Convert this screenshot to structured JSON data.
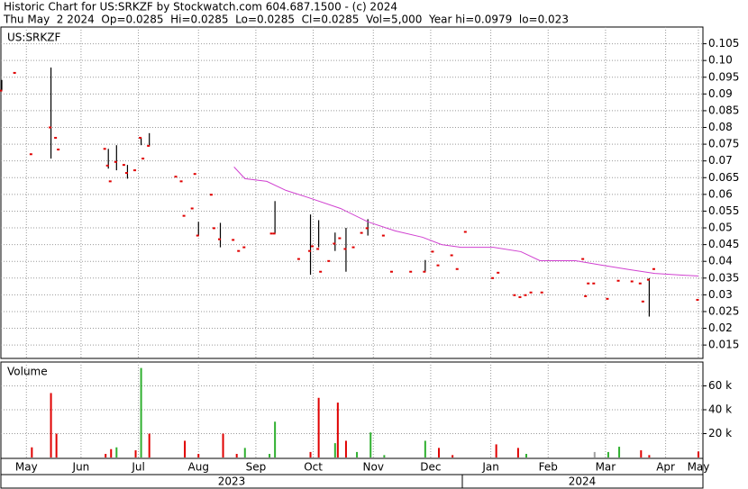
{
  "header": {
    "line1": "Historic Chart for US:SRKZF by Stockwatch.com 604.687.1500 - (c) 2024",
    "line2": "Thu May  2 2024  Op=0.0285  Hi=0.0285  Lo=0.0285  Cl=0.0285  Vol=5,000  Year hi=0.0979  lo=0.023"
  },
  "year_labels": [
    "2023",
    "2024"
  ],
  "chart_data": [
    {
      "type": "ohlc",
      "symbol": "US:SRKZF",
      "xlim": [
        0,
        256
      ],
      "ylim": [
        0.011,
        0.11
      ],
      "yticks": [
        0.015,
        0.02,
        0.025,
        0.03,
        0.035,
        0.04,
        0.045,
        0.05,
        0.055,
        0.06,
        0.065,
        0.07,
        0.075,
        0.08,
        0.085,
        0.09,
        0.095,
        {
          "value": 0.1,
          "label": "0.10"
        },
        0.105
      ],
      "xticks": [
        {
          "value": 9,
          "label": "May"
        },
        {
          "value": 29,
          "label": "Jun"
        },
        {
          "value": 50,
          "label": "Jul"
        },
        {
          "value": 72,
          "label": "Aug"
        },
        {
          "value": 93,
          "label": "Sep"
        },
        {
          "value": 114,
          "label": "Oct"
        },
        {
          "value": 136,
          "label": "Nov"
        },
        {
          "value": 157,
          "label": "Dec"
        },
        {
          "value": 179,
          "label": "Jan"
        },
        {
          "value": 200,
          "label": "Feb"
        },
        {
          "value": 221,
          "label": "Mar"
        },
        {
          "value": 243,
          "label": "Apr"
        },
        {
          "value": 255,
          "label": "May"
        }
      ],
      "grid": true,
      "bars": {
        "color": "#e00000",
        "x": [
          0,
          5,
          11,
          18,
          20,
          21,
          38,
          39,
          40,
          42,
          45,
          46,
          49,
          51,
          52,
          54,
          64,
          66,
          67,
          70,
          71,
          72,
          77,
          78,
          80,
          85,
          87,
          89,
          99,
          100,
          109,
          113,
          114,
          116,
          117,
          120,
          122,
          124,
          126,
          129,
          132,
          134,
          140,
          143,
          150,
          155,
          158,
          160,
          165,
          167,
          170,
          180,
          182,
          188,
          190,
          192,
          194,
          198,
          213,
          214,
          215,
          217,
          222,
          226,
          231,
          234,
          235,
          237,
          239,
          255
        ],
        "high": [
          0.0942,
          null,
          null,
          0.0979,
          null,
          null,
          null,
          0.0736,
          null,
          0.0747,
          null,
          0.0688,
          null,
          0.0769,
          null,
          0.0783,
          null,
          null,
          null,
          null,
          null,
          0.0518,
          null,
          null,
          0.0515,
          null,
          null,
          null,
          null,
          0.058,
          null,
          0.054,
          null,
          0.0523,
          null,
          null,
          0.0486,
          null,
          0.05,
          null,
          null,
          0.0526,
          null,
          null,
          null,
          0.0404,
          null,
          null,
          null,
          null,
          null,
          null,
          null,
          null,
          null,
          null,
          null,
          null,
          null,
          null,
          null,
          null,
          null,
          null,
          null,
          null,
          null,
          0.035,
          null,
          null
        ],
        "low": [
          0.091,
          null,
          null,
          0.0707,
          null,
          null,
          null,
          0.0677,
          null,
          0.0672,
          null,
          0.0647,
          null,
          0.0747,
          null,
          0.0745,
          null,
          null,
          null,
          null,
          null,
          0.0477,
          null,
          null,
          0.0442,
          null,
          null,
          null,
          null,
          0.0483,
          null,
          0.036,
          null,
          0.0442,
          null,
          null,
          0.0431,
          null,
          0.0369,
          null,
          null,
          0.0477,
          null,
          null,
          null,
          0.0369,
          null,
          null,
          null,
          null,
          null,
          null,
          null,
          null,
          null,
          null,
          null,
          null,
          null,
          null,
          null,
          null,
          null,
          null,
          null,
          null,
          null,
          0.0235,
          null,
          null
        ],
        "close": [
          0.091,
          0.0963,
          0.072,
          0.08,
          0.0769,
          0.0734,
          0.0736,
          0.0686,
          0.0639,
          0.0697,
          0.0688,
          0.0664,
          0.0672,
          0.0769,
          0.0707,
          0.0745,
          0.0653,
          0.0639,
          0.0536,
          0.0558,
          0.0661,
          0.0477,
          0.0599,
          0.0499,
          0.0466,
          0.0464,
          0.0431,
          0.0442,
          0.0483,
          0.0483,
          0.0407,
          0.0431,
          0.0445,
          0.0437,
          0.0369,
          0.0401,
          0.0453,
          0.0469,
          0.0437,
          0.0442,
          0.0485,
          0.0499,
          0.0477,
          0.0369,
          0.0369,
          0.0369,
          0.0429,
          0.0388,
          0.0418,
          0.0377,
          0.0488,
          0.035,
          0.0366,
          0.0299,
          0.0293,
          0.0299,
          0.0307,
          0.0307,
          0.0407,
          0.0296,
          0.0334,
          0.0334,
          0.0288,
          0.0342,
          0.034,
          0.0334,
          0.028,
          0.0345,
          0.0377,
          0.0285
        ]
      },
      "ma": {
        "color": "#d040d0",
        "x": [
          85,
          89,
          97,
          104,
          112,
          124,
          134,
          144,
          154,
          161,
          168,
          180,
          190,
          197,
          210,
          220,
          230,
          239,
          255
        ],
        "values": [
          0.0682,
          0.0647,
          0.0639,
          0.0612,
          0.0591,
          0.0558,
          0.0518,
          0.0491,
          0.0472,
          0.045,
          0.0442,
          0.0442,
          0.0429,
          0.0402,
          0.0402,
          0.0388,
          0.0375,
          0.0364,
          0.0356
        ]
      }
    },
    {
      "type": "bar",
      "title": "Volume",
      "xlim": [
        0,
        256
      ],
      "ylim": [
        0,
        80000
      ],
      "yticks": [
        {
          "value": 20000,
          "label": "20 k"
        },
        {
          "value": 40000,
          "label": "40 k"
        },
        {
          "value": 60000,
          "label": "60 k"
        }
      ],
      "grid": true,
      "x": [
        11,
        18,
        20,
        38,
        40,
        42,
        49,
        51,
        54,
        67,
        72,
        81,
        86,
        89,
        98,
        100,
        113,
        116,
        122,
        123,
        126,
        130,
        135,
        140,
        155,
        160,
        165,
        181,
        189,
        192,
        217,
        222,
        226,
        234,
        237,
        255
      ],
      "values": [
        8500,
        54000,
        20000,
        3000,
        7000,
        8500,
        6000,
        75000,
        20000,
        14000,
        3000,
        20000,
        3000,
        8000,
        3000,
        30000,
        4600,
        50000,
        12000,
        46000,
        14000,
        4600,
        21000,
        2000,
        14000,
        8000,
        2000,
        11000,
        8000,
        3000,
        4600,
        4600,
        9000,
        6000,
        2000,
        5000
      ],
      "colors": [
        "#e00000",
        "#e00000",
        "#e00000",
        "#e00000",
        "#e00000",
        "#30b030",
        "#e00000",
        "#30b030",
        "#e00000",
        "#e00000",
        "#e00000",
        "#e00000",
        "#e00000",
        "#30b030",
        "#30b030",
        "#30b030",
        "#e00000",
        "#e00000",
        "#30b030",
        "#e00000",
        "#e00000",
        "#30b030",
        "#30b030",
        "#30b030",
        "#30b030",
        "#e00000",
        "#e00000",
        "#e00000",
        "#e00000",
        "#30b030",
        "#a0a0a0",
        "#30b030",
        "#30b030",
        "#e00000",
        "#e00000",
        "#e00000"
      ]
    }
  ]
}
